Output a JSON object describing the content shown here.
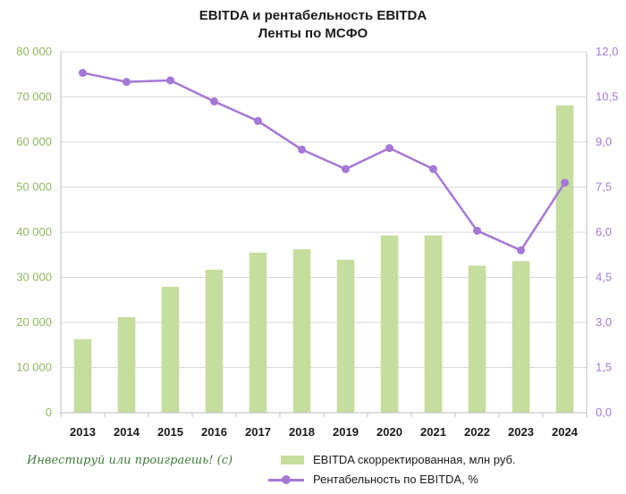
{
  "chart_data": {
    "type": "bar",
    "title_line1": "EBITDA и рентабельность EBITDA",
    "title_line2": "Ленты по МСФО",
    "categories": [
      "2013",
      "2014",
      "2015",
      "2016",
      "2017",
      "2018",
      "2019",
      "2020",
      "2021",
      "2022",
      "2023",
      "2024"
    ],
    "series": [
      {
        "name": "EBITDA скорректированная, млн руб.",
        "type": "bar",
        "axis": "left",
        "values": [
          16300,
          21200,
          27900,
          31700,
          35500,
          36200,
          33900,
          39300,
          39300,
          32600,
          33600,
          68100
        ]
      },
      {
        "name": "Рентабельность по EBITDA, %",
        "type": "line",
        "axis": "right",
        "values": [
          11.3,
          11.0,
          11.05,
          10.35,
          9.7,
          8.75,
          8.1,
          8.8,
          8.1,
          6.05,
          5.4,
          7.65
        ]
      }
    ],
    "y_left": {
      "lim": [
        0,
        80000
      ],
      "ticks": [
        0,
        10000,
        20000,
        30000,
        40000,
        50000,
        60000,
        70000,
        80000
      ],
      "tick_labels": [
        "0",
        "10 000",
        "20 000",
        "30 000",
        "40 000",
        "50 000",
        "60 000",
        "70 000",
        "80 000"
      ]
    },
    "y_right": {
      "lim": [
        0,
        12
      ],
      "ticks": [
        0,
        1.5,
        3,
        4.5,
        6,
        7.5,
        9,
        10.5,
        12
      ],
      "tick_labels": [
        "0,0",
        "1,5",
        "3,0",
        "4,5",
        "6,0",
        "7,5",
        "9,0",
        "10,5",
        "12,0"
      ]
    },
    "grid": true,
    "legend_position": "bottom-right",
    "watermark": "Инвестируй или проиграешь! (с)",
    "colors": {
      "bar": "#c5dd9d",
      "line": "#a678d6",
      "left_axis_text": "#8fb85f",
      "right_axis_text": "#a678d6",
      "grid": "#d9d9d9",
      "axis": "#bfbfbf"
    }
  }
}
